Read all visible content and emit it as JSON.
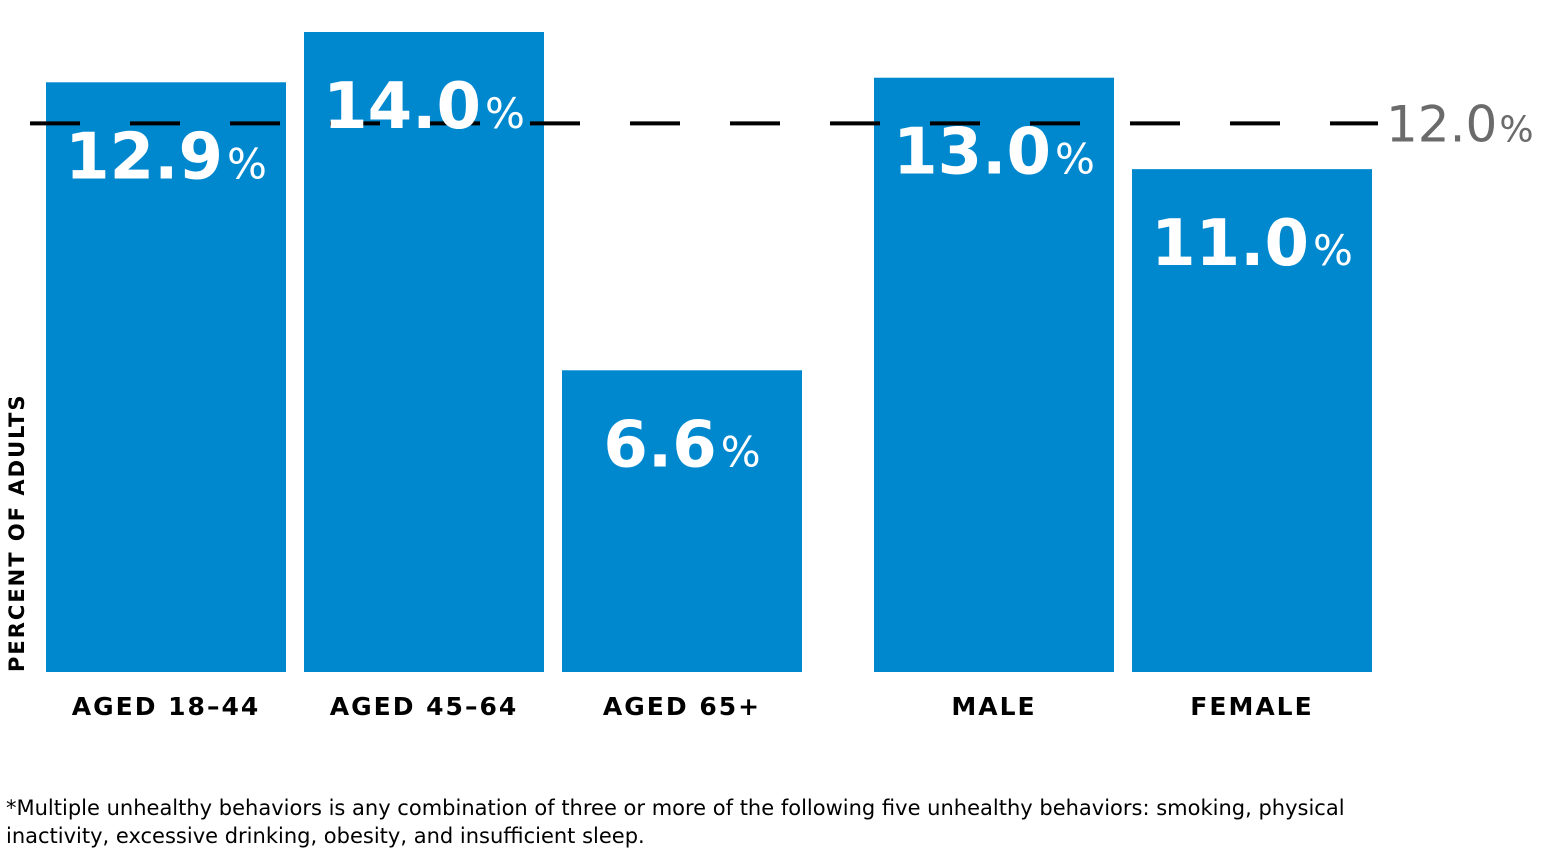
{
  "chart_data": {
    "type": "bar",
    "categories": [
      "AGED 18–44",
      "AGED 45–64",
      "AGED 65+",
      "MALE",
      "FEMALE"
    ],
    "groups": [
      [
        0,
        1,
        2
      ],
      [
        3,
        4
      ]
    ],
    "values": [
      12.9,
      14.0,
      6.6,
      13.0,
      11.0
    ],
    "value_labels": [
      "12.9",
      "14.0",
      "6.6",
      "13.0",
      "11.0"
    ],
    "value_suffix": "%",
    "reference_line": {
      "value": 12.0,
      "label": "12.0",
      "suffix": "%",
      "style": "dashed"
    },
    "ylabel": "PERCENT OF ADULTS",
    "ylim": [
      0,
      14.7
    ],
    "grid": false,
    "bar_color": "#0088cf",
    "label_color": "#ffffff",
    "reference_color": "#000000",
    "reference_label_color": "#6b6b6b"
  },
  "footnote": "*Multiple unhealthy behaviors is any combination of three or more of the following five unhealthy behaviors: smoking, physical inactivity, excessive drinking, obesity, and insufficient sleep."
}
